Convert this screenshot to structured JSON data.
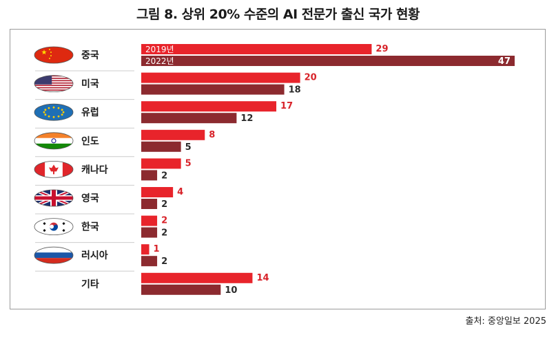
{
  "title": "그림 8. 상위 20% 수준의 AI 전문가 출신 국가 현황",
  "source": "출처: 중앙일보 2025",
  "colors": {
    "series_2019": "#e8242b",
    "series_2022": "#8c2a2f",
    "label_2019": "#d8232a",
    "label_2022": "#2b2b2b",
    "separator": "#cccccc"
  },
  "chart_data": {
    "type": "bar",
    "orientation": "horizontal",
    "categories": [
      "중국",
      "미국",
      "유럽",
      "인도",
      "캐나다",
      "영국",
      "한국",
      "러시아",
      "기타"
    ],
    "flags": [
      "china-flag",
      "usa-flag",
      "eu-flag",
      "india-flag",
      "canada-flag",
      "uk-flag",
      "korea-flag",
      "russia-flag",
      ""
    ],
    "series": [
      {
        "name": "2019년",
        "values": [
          29,
          20,
          17,
          8,
          5,
          4,
          2,
          1,
          14
        ]
      },
      {
        "name": "2022년",
        "values": [
          47,
          18,
          12,
          5,
          2,
          2,
          2,
          2,
          10
        ]
      }
    ],
    "legend_placement": "inside-first-bars",
    "xlim": [
      0,
      47
    ],
    "grid": false
  }
}
